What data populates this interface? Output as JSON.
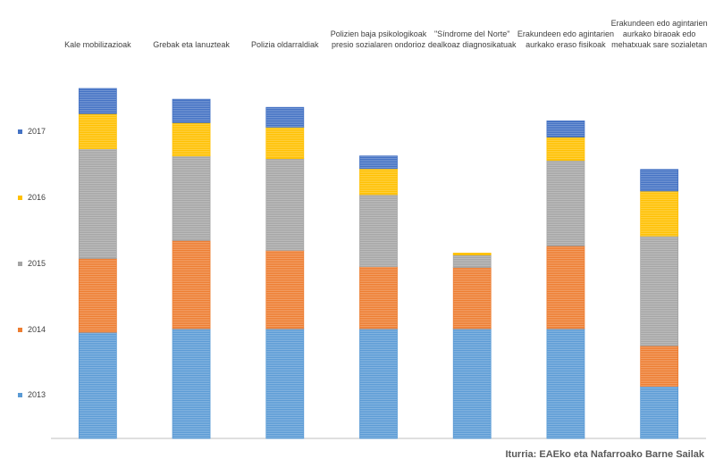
{
  "chart_data": {
    "type": "bar",
    "stacked": true,
    "categories": [
      "Kale mobilizazioak",
      "Grebak eta lanuzteak",
      "Polizia oldarraldiak",
      "Polizien baja psikologikoak presio sozialaren ondorioz",
      "\"Síndrome del Norte\" dealkoaz diagnosikatuak",
      "Erakundeen edo agintarien aurkako eraso fisikoak",
      "Erakundeen edo agintarien aurkako biraoak edo mehatxuak sare sozialetan"
    ],
    "series": [
      {
        "name": "2013",
        "color": "#5b9bd5",
        "values": [
          118,
          122,
          122,
          122,
          122,
          122,
          58
        ]
      },
      {
        "name": "2014",
        "color": "#ed7d31",
        "values": [
          82,
          98,
          87,
          69,
          68,
          92,
          45
        ]
      },
      {
        "name": "2015",
        "color": "#a5a5a5",
        "values": [
          122,
          94,
          102,
          80,
          14,
          95,
          122
        ]
      },
      {
        "name": "2016",
        "color": "#ffc000",
        "values": [
          39,
          37,
          35,
          29,
          2,
          26,
          50
        ]
      },
      {
        "name": "2017",
        "color": "#4472c4",
        "values": [
          28,
          26,
          22,
          14,
          0,
          18,
          24
        ]
      }
    ],
    "legend_position": "left",
    "grid": false,
    "ylim": [
      0,
      400
    ],
    "source": "Iturria: EAEko eta Nafarroako Barne Sailak"
  }
}
